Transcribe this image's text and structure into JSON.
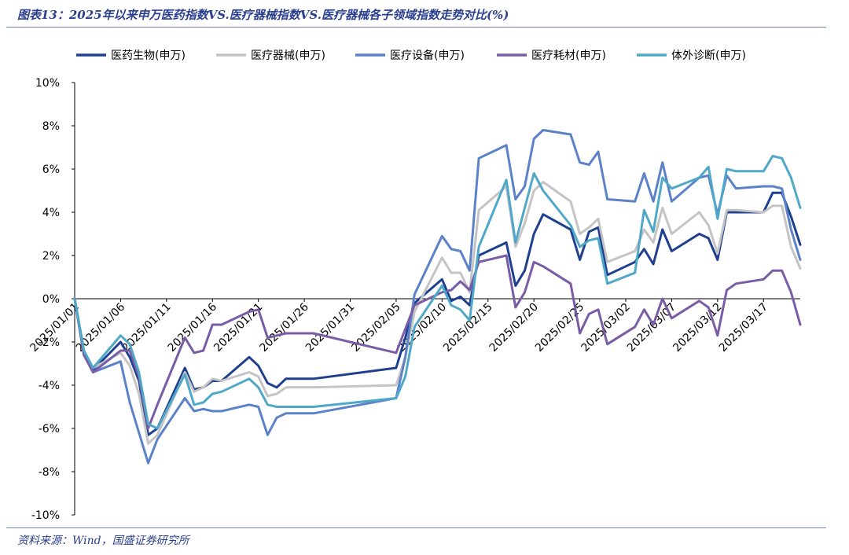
{
  "figure_title": "图表13：2025年以来申万医药指数VS.医疗器械指数VS.医疗器械各子领域指数走势对比(%)",
  "source": "资料来源：Wind，国盛证券研究所",
  "chart_data": {
    "type": "line",
    "title": "图表13：2025年以来申万医药指数VS.医疗器械指数VS.医疗器械各子领域指数走势对比(%)",
    "xlabel": "",
    "ylabel": "",
    "ylim": [
      -10,
      10
    ],
    "y_unit": "%",
    "yticks": [
      -10,
      -8,
      -6,
      -4,
      -2,
      0,
      2,
      4,
      6,
      8,
      10
    ],
    "ytick_labels": [
      "-10%",
      "-8%",
      "-6%",
      "-4%",
      "-2%",
      "0%",
      "2%",
      "4%",
      "6%",
      "8%",
      "10%"
    ],
    "xticks": [
      "2025/01/01",
      "2025/01/06",
      "2025/01/11",
      "2025/01/16",
      "2025/01/21",
      "2025/01/26",
      "2025/01/31",
      "2025/02/05",
      "2025/02/10",
      "2025/02/15",
      "2025/02/20",
      "2025/02/25",
      "2025/03/02",
      "2025/03/07",
      "2025/03/12",
      "2025/03/17"
    ],
    "grid": false,
    "legend_position": "top",
    "x": [
      "2025/01/01",
      "2025/01/02",
      "2025/01/03",
      "2025/01/06",
      "2025/01/07",
      "2025/01/08",
      "2025/01/09",
      "2025/01/10",
      "2025/01/13",
      "2025/01/14",
      "2025/01/15",
      "2025/01/16",
      "2025/01/17",
      "2025/01/20",
      "2025/01/21",
      "2025/01/22",
      "2025/01/23",
      "2025/01/24",
      "2025/01/27",
      "2025/02/05",
      "2025/02/06",
      "2025/02/07",
      "2025/02/10",
      "2025/02/11",
      "2025/02/12",
      "2025/02/13",
      "2025/02/14",
      "2025/02/17",
      "2025/02/18",
      "2025/02/19",
      "2025/02/20",
      "2025/02/21",
      "2025/02/24",
      "2025/02/25",
      "2025/02/26",
      "2025/02/27",
      "2025/02/28",
      "2025/03/03",
      "2025/03/04",
      "2025/03/05",
      "2025/03/06",
      "2025/03/07",
      "2025/03/10",
      "2025/03/11",
      "2025/03/12",
      "2025/03/13",
      "2025/03/14",
      "2025/03/17",
      "2025/03/18",
      "2025/03/19",
      "2025/03/20",
      "2025/03/21"
    ],
    "series": [
      {
        "name": "医药生物(申万)",
        "color": "#1f3f8f",
        "values": [
          0.0,
          -2.4,
          -3.3,
          -2.0,
          -2.7,
          -3.8,
          -6.3,
          -6.0,
          -3.2,
          -4.2,
          -4.1,
          -3.8,
          -3.8,
          -2.7,
          -3.1,
          -3.9,
          -4.1,
          -3.7,
          -3.7,
          -3.2,
          -1.8,
          -0.2,
          0.9,
          -0.1,
          0.1,
          -0.3,
          2.0,
          2.6,
          0.6,
          1.3,
          3.0,
          3.9,
          3.2,
          1.8,
          3.1,
          3.3,
          1.1,
          1.7,
          2.3,
          1.6,
          3.2,
          2.2,
          3.0,
          2.8,
          1.8,
          4.0,
          4.0,
          4.0,
          4.9,
          4.9,
          3.8,
          2.5
        ]
      },
      {
        "name": "医疗器械(申万)",
        "color": "#c4c4c4",
        "values": [
          0.0,
          -2.5,
          -3.2,
          -2.5,
          -3.1,
          -4.4,
          -6.7,
          -6.3,
          -3.4,
          -4.3,
          -4.1,
          -3.7,
          -3.8,
          -3.4,
          -3.6,
          -4.5,
          -4.4,
          -4.1,
          -4.1,
          -4.0,
          -2.7,
          -0.6,
          1.9,
          1.2,
          1.2,
          0.3,
          4.1,
          5.2,
          2.4,
          3.5,
          5.0,
          5.4,
          4.5,
          3.0,
          3.3,
          3.7,
          1.7,
          2.2,
          3.2,
          2.6,
          4.2,
          3.0,
          4.0,
          3.4,
          2.1,
          4.1,
          4.1,
          4.0,
          4.3,
          4.3,
          2.4,
          1.4
        ]
      },
      {
        "name": "医疗设备(申万)",
        "color": "#5b82c8",
        "values": [
          0.0,
          -2.6,
          -3.4,
          -2.9,
          -4.8,
          -6.2,
          -7.6,
          -6.5,
          -4.6,
          -5.2,
          -5.1,
          -5.2,
          -5.2,
          -4.9,
          -5.0,
          -6.3,
          -5.5,
          -5.3,
          -5.3,
          -4.6,
          -2.7,
          0.2,
          2.9,
          2.3,
          2.2,
          1.3,
          6.5,
          7.1,
          4.6,
          5.2,
          7.4,
          7.8,
          7.6,
          6.3,
          6.2,
          6.8,
          4.6,
          4.5,
          5.8,
          4.5,
          6.3,
          4.5,
          5.6,
          5.7,
          3.9,
          5.7,
          5.1,
          5.2,
          5.2,
          5.1,
          3.2,
          1.8
        ]
      },
      {
        "name": "医疗耗材(申万)",
        "color": "#7a5ca6",
        "values": [
          0.0,
          -2.6,
          -3.4,
          -2.4,
          -2.4,
          -3.6,
          -6.0,
          -4.9,
          -1.8,
          -2.5,
          -2.4,
          -1.2,
          -1.2,
          -0.6,
          -0.5,
          -1.8,
          -1.7,
          -1.6,
          -1.6,
          -2.5,
          -1.4,
          -0.3,
          0.3,
          0.4,
          0.8,
          0.4,
          1.7,
          2.0,
          -0.4,
          0.3,
          1.7,
          1.5,
          0.7,
          -1.6,
          -0.7,
          -0.5,
          -2.1,
          -1.3,
          -0.5,
          -1.2,
          0.0,
          -0.9,
          -0.1,
          -0.4,
          -1.7,
          0.4,
          0.7,
          0.9,
          1.3,
          1.3,
          0.3,
          -1.2
        ]
      },
      {
        "name": "体外诊断(申万)",
        "color": "#4fa8c8",
        "values": [
          0.0,
          -2.4,
          -3.2,
          -1.7,
          -2.1,
          -3.4,
          -5.8,
          -6.0,
          -3.5,
          -4.9,
          -4.8,
          -4.4,
          -4.3,
          -3.7,
          -4.1,
          -4.9,
          -5.0,
          -5.0,
          -5.0,
          -4.6,
          -3.6,
          -1.3,
          0.6,
          -0.3,
          -0.5,
          -1.0,
          2.4,
          5.5,
          2.6,
          4.2,
          5.8,
          5.0,
          3.4,
          2.4,
          2.7,
          2.8,
          0.7,
          1.2,
          4.1,
          3.1,
          5.6,
          5.1,
          5.6,
          6.1,
          3.7,
          6.0,
          5.9,
          5.9,
          6.6,
          6.5,
          5.6,
          4.2
        ]
      }
    ]
  }
}
